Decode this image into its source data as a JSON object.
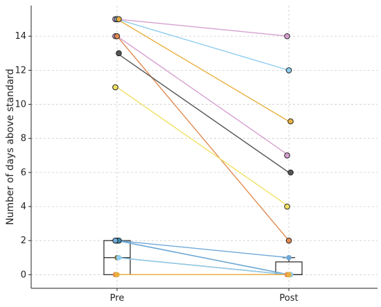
{
  "chart_data": {
    "type": "line",
    "title": "",
    "xlabel": "",
    "ylabel": "Number of days above standard",
    "categories": [
      "Pre",
      "Post"
    ],
    "ylim": [
      -0.8,
      15.8
    ],
    "yticks": [
      0,
      2,
      4,
      6,
      8,
      10,
      12,
      14
    ],
    "grid": true,
    "legend": "none",
    "series": [
      {
        "values": [
          15,
          14
        ],
        "color": "#d6a0d0"
      },
      {
        "values": [
          15,
          12
        ],
        "color": "#8ecdf0"
      },
      {
        "values": [
          15,
          9
        ],
        "color": "#e8b040"
      },
      {
        "values": [
          14,
          7
        ],
        "color": "#d6a0d0"
      },
      {
        "values": [
          14,
          2
        ],
        "color": "#e08a50"
      },
      {
        "values": [
          13,
          6
        ],
        "color": "#555555"
      },
      {
        "values": [
          11,
          4
        ],
        "color": "#f0e060"
      },
      {
        "values": [
          2,
          1
        ],
        "color": "#6fa8d8"
      },
      {
        "values": [
          2,
          0
        ],
        "color": "#3a8fb0"
      },
      {
        "values": [
          2,
          0
        ],
        "color": "#6fa8d8"
      },
      {
        "values": [
          1,
          0
        ],
        "color": "#7a7040"
      },
      {
        "values": [
          1,
          0
        ],
        "color": "#8ecdf0"
      },
      {
        "values": [
          0,
          0
        ],
        "color": "#e08a50"
      },
      {
        "values": [
          0,
          0
        ],
        "color": "#e8b040"
      }
    ],
    "boxplots": [
      {
        "category": "Pre",
        "q1": 0,
        "median": 1,
        "q3": 2,
        "whisker_low": 0,
        "whisker_high": 2
      },
      {
        "category": "Post",
        "q1": 0,
        "median": 0,
        "q3": 0.75,
        "whisker_low": 0,
        "whisker_high": 1
      }
    ]
  }
}
